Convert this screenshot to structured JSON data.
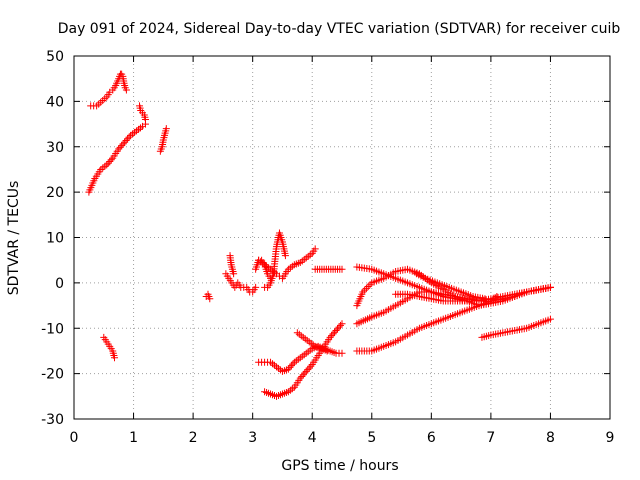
{
  "chart_data": {
    "type": "scatter",
    "title": "Day 091 of 2024, Sidereal Day-to-day VTEC variation (SDTVAR) for receiver cuib",
    "xlabel": "GPS time / hours",
    "ylabel": "SDTVAR / TECUs",
    "xlim": [
      0,
      9
    ],
    "ylim": [
      -30,
      50
    ],
    "xticks": [
      "0",
      "1",
      "2",
      "3",
      "4",
      "5",
      "6",
      "7",
      "8",
      "9"
    ],
    "yticks": [
      "50",
      "40",
      "30",
      "20",
      "10",
      "0",
      "-10",
      "-20",
      "-30"
    ],
    "grid": true,
    "marker": "+",
    "color": "#ff0000",
    "series": [
      {
        "name": "s1",
        "x": [
          0.25,
          0.3,
          0.35,
          0.4,
          0.45,
          0.55,
          0.65,
          0.75,
          0.85,
          0.95,
          1.05,
          1.15,
          1.2
        ],
        "y": [
          20,
          21.5,
          23,
          24,
          25,
          26,
          27.5,
          29.5,
          31,
          32.5,
          33.5,
          34.5,
          35
        ]
      },
      {
        "name": "s2",
        "x": [
          0.28,
          0.38,
          0.55,
          0.6,
          0.65,
          0.7,
          0.75,
          0.78,
          0.8,
          0.82,
          0.84,
          0.86,
          0.88
        ],
        "y": [
          39,
          39,
          41,
          42,
          42.5,
          43.5,
          45,
          46,
          46,
          45.5,
          44,
          43,
          42.5
        ]
      },
      {
        "name": "s3",
        "x": [
          1.1,
          1.12,
          1.15,
          1.18,
          1.2
        ],
        "y": [
          39,
          38,
          37.5,
          37,
          36
        ]
      },
      {
        "name": "s4",
        "x": [
          1.45,
          1.48,
          1.5,
          1.52,
          1.55
        ],
        "y": [
          29,
          30,
          31.5,
          32.5,
          34
        ]
      },
      {
        "name": "s5",
        "x": [
          0.5,
          0.55,
          0.6,
          0.65,
          0.68
        ],
        "y": [
          -12,
          -13,
          -14,
          -15,
          -16.5
        ]
      },
      {
        "name": "s6",
        "x": [
          2.22,
          2.25,
          2.28
        ],
        "y": [
          -3,
          -2.5,
          -3.5
        ]
      },
      {
        "name": "s7",
        "x": [
          2.55,
          2.6,
          2.65,
          2.7,
          2.75,
          2.8,
          2.85,
          2.9,
          2.95,
          3.0,
          3.05
        ],
        "y": [
          2,
          1,
          0,
          -1,
          0,
          -1,
          -1,
          -1,
          -2,
          -2,
          -1
        ]
      },
      {
        "name": "s8",
        "x": [
          2.62,
          2.64,
          2.66,
          2.68
        ],
        "y": [
          6,
          4,
          3,
          2
        ]
      },
      {
        "name": "s9",
        "x": [
          3.05,
          3.1,
          3.15,
          3.2,
          3.25,
          3.3
        ],
        "y": [
          3,
          5,
          5,
          4,
          2,
          1
        ]
      },
      {
        "name": "s10",
        "x": [
          3.2,
          3.25,
          3.3,
          3.35,
          3.4,
          3.45,
          3.5,
          3.55
        ],
        "y": [
          -1,
          -1,
          0,
          2,
          8,
          11,
          9,
          6
        ]
      },
      {
        "name": "s11",
        "x": [
          3.1,
          3.2,
          3.3,
          3.4,
          3.45,
          3.5,
          3.6,
          3.7,
          3.8,
          3.9,
          4.0,
          4.05
        ],
        "y": [
          5,
          4,
          3,
          2,
          1.5,
          1,
          3,
          4,
          4.5,
          5.5,
          6.5,
          7.5
        ]
      },
      {
        "name": "s12",
        "x": [
          3.1,
          3.2,
          3.3,
          3.4,
          3.5,
          3.6,
          3.7,
          3.8,
          3.9,
          4.0,
          4.1,
          4.2,
          4.3,
          4.4,
          4.5
        ],
        "y": [
          -17.5,
          -17.5,
          -17.5,
          -18.5,
          -19.5,
          -19,
          -17.5,
          -16.5,
          -15.5,
          -14.5,
          -14,
          -14.5,
          -15,
          -15.5,
          -15.5
        ]
      },
      {
        "name": "s13",
        "x": [
          3.2,
          3.3,
          3.4,
          3.5,
          3.6,
          3.7,
          3.8,
          3.9,
          4.0,
          4.1,
          4.2,
          4.3,
          4.4,
          4.5
        ],
        "y": [
          -24,
          -24.5,
          -25,
          -24.5,
          -24,
          -23,
          -21,
          -19.5,
          -18,
          -16,
          -14,
          -12,
          -10.5,
          -9
        ]
      },
      {
        "name": "s14",
        "x": [
          3.75,
          3.85,
          3.95,
          4.05,
          4.15,
          4.25
        ],
        "y": [
          -11,
          -12,
          -13,
          -14,
          -14.5,
          -15
        ]
      },
      {
        "name": "s15",
        "x": [
          4.05,
          4.2,
          4.35,
          4.5
        ],
        "y": [
          3,
          3,
          3,
          3
        ]
      },
      {
        "name": "s16",
        "x": [
          4.75,
          5.0,
          5.2,
          5.4,
          5.6,
          5.8,
          6.0,
          6.2,
          6.4,
          6.6,
          6.8,
          7.0,
          7.2,
          7.4,
          7.6,
          7.8,
          8.0
        ],
        "y": [
          3.5,
          3,
          2,
          1,
          0,
          -1,
          -2,
          -3,
          -3.5,
          -4,
          -4,
          -4,
          -3.5,
          -3,
          -2,
          -1.5,
          -1
        ]
      },
      {
        "name": "s17",
        "x": [
          4.75,
          5.0,
          5.2,
          5.4,
          5.6,
          5.8,
          6.0,
          6.2,
          6.4,
          6.6,
          6.8,
          7.0,
          7.2
        ],
        "y": [
          -9,
          -7.5,
          -6.5,
          -5,
          -3.5,
          -2,
          -2,
          -2.5,
          -3,
          -3.5,
          -4,
          -4,
          -3.5
        ]
      },
      {
        "name": "s18",
        "x": [
          4.75,
          4.85,
          5.0,
          5.2,
          5.4,
          5.6,
          5.8,
          6.0,
          6.2,
          6.4,
          6.6,
          6.8,
          7.0,
          7.2,
          7.4,
          7.6,
          7.8,
          8.0
        ],
        "y": [
          -5,
          -2,
          0,
          1,
          2.5,
          3,
          2,
          0,
          -1.5,
          -3,
          -4,
          -5,
          -4.5,
          -4,
          -3,
          -2,
          -1.5,
          -1
        ]
      },
      {
        "name": "s19",
        "x": [
          5.4,
          5.6,
          5.8,
          6.0,
          6.2,
          6.4,
          6.6,
          6.8,
          7.0,
          7.2,
          7.4,
          7.6,
          7.8,
          8.0
        ],
        "y": [
          -2.5,
          -2.5,
          -3,
          -3.5,
          -4,
          -4,
          -4,
          -4,
          -3.5,
          -3,
          -2.5,
          -2,
          -1.5,
          -1
        ]
      },
      {
        "name": "s20",
        "x": [
          5.75,
          5.9,
          6.1,
          6.3,
          6.5,
          6.7,
          6.9
        ],
        "y": [
          2,
          1,
          0,
          -1,
          -2,
          -3,
          -3.5
        ]
      },
      {
        "name": "s21",
        "x": [
          4.75,
          5.0,
          5.2,
          5.4,
          5.6,
          5.8,
          6.0,
          6.2,
          6.4,
          6.6,
          6.8,
          7.0,
          7.1
        ],
        "y": [
          -15,
          -15,
          -14,
          -13,
          -11.5,
          -10,
          -9,
          -8,
          -7,
          -6,
          -5,
          -4,
          -3
        ]
      },
      {
        "name": "s22",
        "x": [
          6.85,
          7.0,
          7.2,
          7.4,
          7.6,
          7.8,
          8.0
        ],
        "y": [
          -12,
          -11.5,
          -11,
          -10.5,
          -10,
          -9,
          -8
        ]
      }
    ]
  }
}
